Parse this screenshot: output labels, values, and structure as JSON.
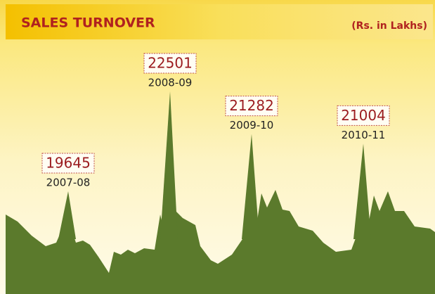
{
  "chart_data": {
    "type": "peaks",
    "title": "SALES TURNOVER",
    "unit": "(Rs. in Lakhs)",
    "categories": [
      "2007-08",
      "2008-09",
      "2009-10",
      "2010-11"
    ],
    "values": [
      19645,
      22501,
      21282,
      21004
    ],
    "color": "#5b7a2c"
  }
}
